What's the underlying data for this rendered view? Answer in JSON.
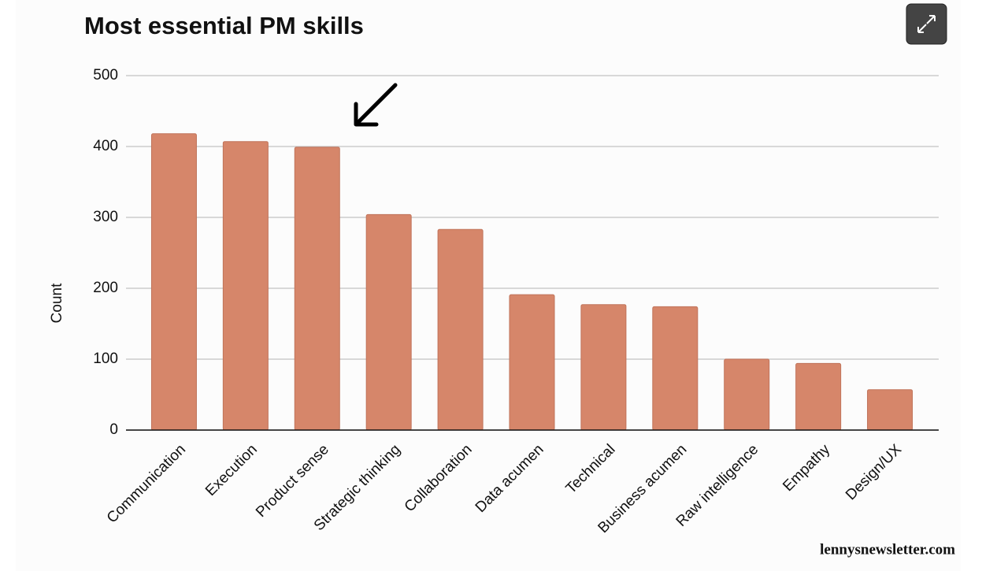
{
  "chart_data": {
    "type": "bar",
    "title": "Most essential PM skills",
    "y_label": "Count",
    "categories": [
      "Communication",
      "Execution",
      "Product sense",
      "Strategic thinking",
      "Collaboration",
      "Data acumen",
      "Technical",
      "Business acumen",
      "Raw intelligence",
      "Empathy",
      "Design/UX"
    ],
    "values": [
      418,
      407,
      399,
      304,
      283,
      191,
      177,
      174,
      100,
      94,
      57
    ],
    "color": "#d6866a",
    "ylim": [
      0,
      500
    ],
    "yticks": [
      0,
      100,
      200,
      300,
      400,
      500
    ],
    "grid": true
  },
  "watermark": "lennysnewsletter.com"
}
